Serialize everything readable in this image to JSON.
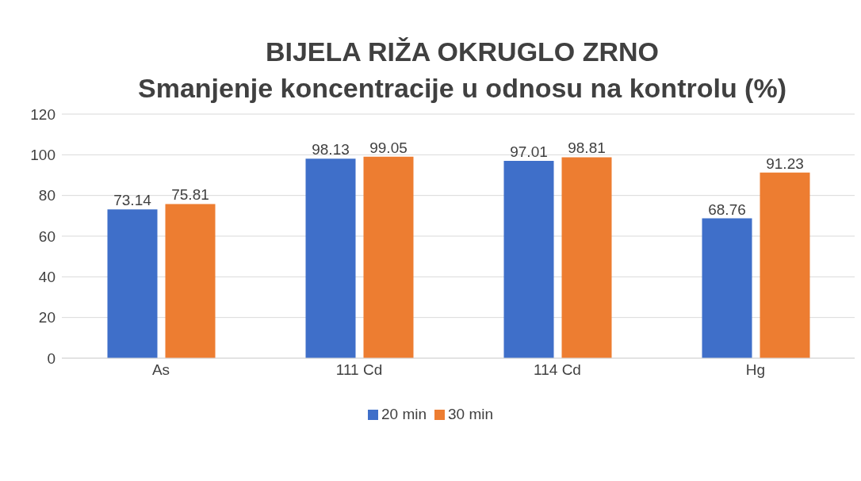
{
  "chart_data": {
    "type": "bar",
    "title": "BIJELA RIŽA OKRUGLO ZRNO",
    "subtitle": "Smanjenje koncentracije u odnosu na kontrolu (%)",
    "categories": [
      "As",
      "111 Cd",
      "114 Cd",
      "Hg"
    ],
    "series": [
      {
        "name": "20 min",
        "color": "#3f6fc9",
        "values": [
          73.14,
          98.13,
          97.01,
          68.76
        ]
      },
      {
        "name": "30 min",
        "color": "#ed7d31",
        "values": [
          75.81,
          99.05,
          98.81,
          91.23
        ]
      }
    ],
    "ylim": [
      0,
      120
    ],
    "yticks": [
      0,
      20,
      40,
      60,
      80,
      100,
      120
    ],
    "grid": "y",
    "legend": "bottom",
    "data_labels": true
  }
}
